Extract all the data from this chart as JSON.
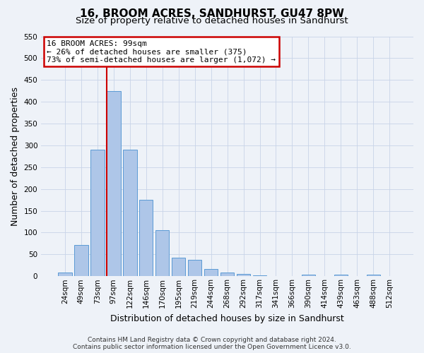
{
  "title": "16, BROOM ACRES, SANDHURST, GU47 8PW",
  "subtitle": "Size of property relative to detached houses in Sandhurst",
  "xlabel": "Distribution of detached houses by size in Sandhurst",
  "ylabel": "Number of detached properties",
  "bin_labels": [
    "24sqm",
    "49sqm",
    "73sqm",
    "97sqm",
    "122sqm",
    "146sqm",
    "170sqm",
    "195sqm",
    "219sqm",
    "244sqm",
    "268sqm",
    "292sqm",
    "317sqm",
    "341sqm",
    "366sqm",
    "390sqm",
    "414sqm",
    "439sqm",
    "463sqm",
    "488sqm",
    "512sqm"
  ],
  "bar_values": [
    8,
    71,
    290,
    425,
    290,
    175,
    105,
    43,
    38,
    17,
    8,
    5,
    2,
    0,
    0,
    4,
    0,
    4,
    0,
    3,
    0
  ],
  "bar_color": "#aec6e8",
  "bar_edge_color": "#5b9bd5",
  "vline_color": "#cc0000",
  "annotation_title": "16 BROOM ACRES: 99sqm",
  "annotation_line2": "← 26% of detached houses are smaller (375)",
  "annotation_line3": "73% of semi-detached houses are larger (1,072) →",
  "annotation_box_color": "#cc0000",
  "ylim": [
    0,
    550
  ],
  "yticks": [
    0,
    50,
    100,
    150,
    200,
    250,
    300,
    350,
    400,
    450,
    500,
    550
  ],
  "footer_line1": "Contains HM Land Registry data © Crown copyright and database right 2024.",
  "footer_line2": "Contains public sector information licensed under the Open Government Licence v3.0.",
  "title_fontsize": 11,
  "subtitle_fontsize": 9.5,
  "axis_label_fontsize": 9,
  "tick_fontsize": 7.5,
  "annotation_fontsize": 8,
  "footer_fontsize": 6.5,
  "bg_color": "#eef2f8"
}
